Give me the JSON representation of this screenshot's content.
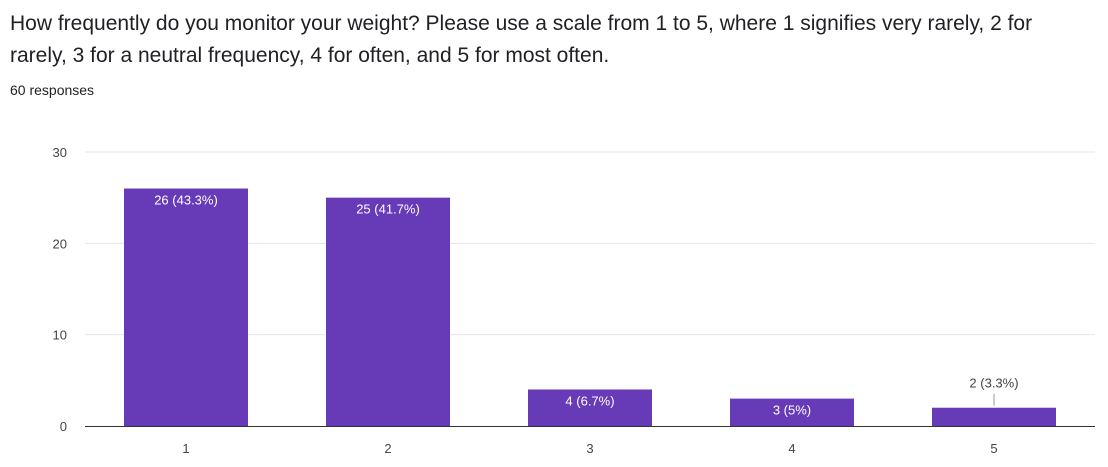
{
  "form": {
    "question": "How frequently do you monitor your weight?   Please use a scale from 1 to 5, where 1 signifies very rarely, 2 for rarely, 3 for a neutral frequency, 4 for often, and 5 for most often.",
    "responses": "60 responses"
  },
  "chart_data": {
    "type": "bar",
    "categories": [
      "1",
      "2",
      "3",
      "4",
      "5"
    ],
    "values": [
      26,
      25,
      4,
      3,
      2
    ],
    "labels": [
      "26 (43.3%)",
      "25 (41.7%)",
      "4 (6.7%)",
      "3 (5%)",
      "2 (3.3%)"
    ],
    "y_ticks": [
      0,
      10,
      20,
      30
    ],
    "ylim": [
      0,
      30
    ],
    "grid": true,
    "legend": "none",
    "bar_color": "#673ab7",
    "label_color_inside": "#ffffff",
    "label_color_outside": "#444444",
    "grid_color": "#e6e6e6",
    "axis_color": "#333333"
  }
}
